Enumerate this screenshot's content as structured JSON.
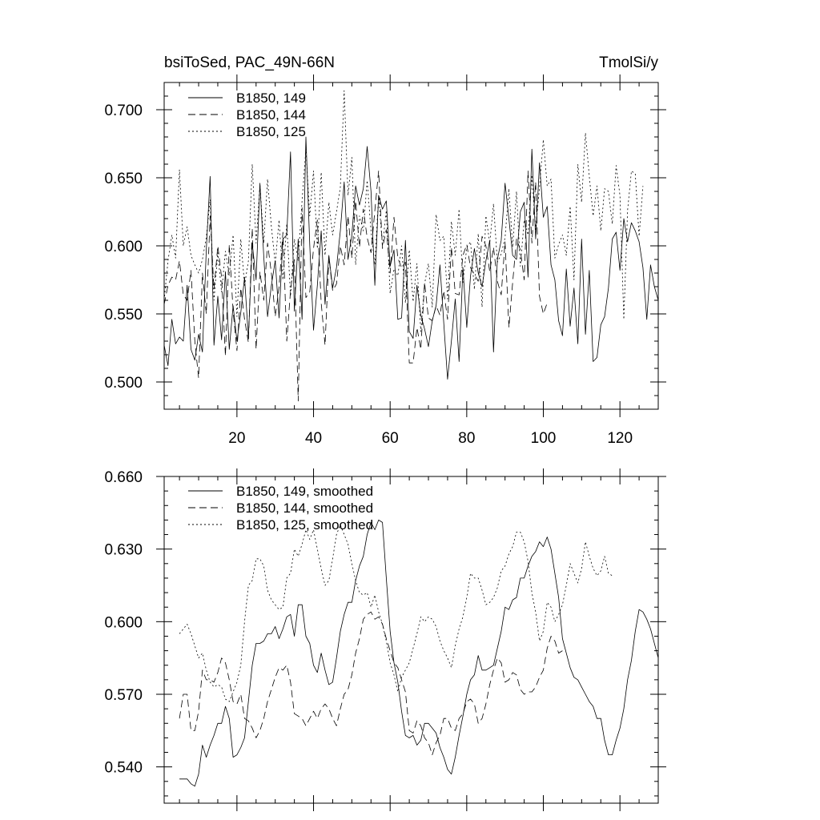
{
  "chart_data": [
    {
      "type": "line",
      "title_left": "bsiToSed, PAC_49N-66N",
      "title_right": "TmolSi/y",
      "xlim": [
        1,
        130
      ],
      "ylim": [
        0.48,
        0.72
      ],
      "x_major_ticks": [
        20,
        40,
        60,
        80,
        100,
        120
      ],
      "x_tick_labels": [
        "20",
        "40",
        "60",
        "80",
        "100",
        "120"
      ],
      "y_major_ticks": [
        0.5,
        0.55,
        0.6,
        0.65,
        0.7
      ],
      "y_tick_labels": [
        "0.500",
        "0.550",
        "0.600",
        "0.650",
        "0.700"
      ],
      "legend_position": "top-left",
      "series": [
        {
          "name": "B1850, 149",
          "style": "solid",
          "x_start": 1,
          "values": [
            0.527,
            0.512,
            0.546,
            0.528,
            0.533,
            0.53,
            0.571,
            0.524,
            0.516,
            0.535,
            0.522,
            0.597,
            0.651,
            0.527,
            0.563,
            0.531,
            0.581,
            0.524,
            0.556,
            0.53,
            0.551,
            0.577,
            0.532,
            0.602,
            0.575,
            0.646,
            0.592,
            0.548,
            0.571,
            0.589,
            0.547,
            0.605,
            0.608,
            0.669,
            0.552,
            0.605,
            0.546,
            0.68,
            0.601,
            0.538,
            0.571,
            0.611,
            0.557,
            0.593,
            0.569,
            0.584,
            0.611,
            0.647,
            0.59,
            0.608,
            0.644,
            0.63,
            0.642,
            0.673,
            0.64,
            0.571,
            0.637,
            0.627,
            0.633,
            0.585,
            0.597,
            0.546,
            0.547,
            0.604,
            0.537,
            0.532,
            0.571,
            0.549,
            0.539,
            0.526,
            0.545,
            0.556,
            0.586,
            0.543,
            0.502,
            0.53,
            0.561,
            0.515,
            0.584,
            0.54,
            0.578,
            0.598,
            0.58,
            0.57,
            0.589,
            0.604,
            0.522,
            0.59,
            0.604,
            0.646,
            0.62,
            0.593,
            0.59,
            0.625,
            0.632,
            0.577,
            0.671,
            0.605,
            0.661,
            0.621,
            0.629,
            0.586,
            0.575,
            0.545,
            0.534,
            0.583,
            0.541,
            0.569,
            0.528,
            0.605,
            0.535,
            0.582,
            0.515,
            0.518,
            0.542,
            0.548,
            0.569,
            0.605,
            0.61,
            0.582,
            0.62,
            0.603,
            0.617,
            0.611,
            0.603,
            0.584,
            0.546,
            0.586,
            0.57,
            0.56
          ]
        },
        {
          "name": "B1850, 144",
          "style": "dashed",
          "x_start": 1,
          "values": [
            0.557,
            0.571,
            0.577,
            0.575,
            0.589,
            0.564,
            0.56,
            0.582,
            0.53,
            0.503,
            0.58,
            0.55,
            0.622,
            0.568,
            0.6,
            0.577,
            0.519,
            0.601,
            0.552,
            0.523,
            0.569,
            0.546,
            0.529,
            0.613,
            0.524,
            0.581,
            0.56,
            0.602,
            0.58,
            0.548,
            0.57,
            0.61,
            0.53,
            0.567,
            0.59,
            0.486,
            0.628,
            0.562,
            0.566,
            0.598,
            0.619,
            0.558,
            0.527,
            0.592,
            0.567,
            0.572,
            0.6,
            0.586,
            0.622,
            0.591,
            0.633,
            0.599,
            0.627,
            0.606,
            0.595,
            0.626,
            0.655,
            0.598,
            0.612,
            0.58,
            0.621,
            0.591,
            0.584,
            0.588,
            0.514,
            0.514,
            0.54,
            0.524,
            0.573,
            0.547,
            0.545,
            0.556,
            0.549,
            0.567,
            0.546,
            0.599,
            0.565,
            0.564,
            0.593,
            0.601,
            0.584,
            0.579,
            0.574,
            0.607,
            0.6,
            0.581,
            0.599,
            0.574,
            0.564,
            0.603,
            0.54,
            0.573,
            0.605,
            0.597,
            0.575,
            0.655,
            0.602,
            0.647,
            0.563,
            0.55,
            0.558
          ]
        },
        {
          "name": "B1850, 125",
          "style": "dotted",
          "x_start": 1,
          "values": [
            0.56,
            0.589,
            0.608,
            0.591,
            0.656,
            0.6,
            0.614,
            0.593,
            0.586,
            0.58,
            0.59,
            0.606,
            0.634,
            0.56,
            0.595,
            0.566,
            0.596,
            0.578,
            0.608,
            0.548,
            0.605,
            0.571,
            0.589,
            0.66,
            0.602,
            0.645,
            0.602,
            0.649,
            0.614,
            0.587,
            0.619,
            0.575,
            0.616,
            0.563,
            0.605,
            0.589,
            0.633,
            0.671,
            0.622,
            0.655,
            0.598,
            0.654,
            0.593,
            0.632,
            0.608,
            0.625,
            0.643,
            0.714,
            0.637,
            0.665,
            0.586,
            0.622,
            0.611,
            0.648,
            0.611,
            0.586,
            0.637,
            0.6,
            0.626,
            0.565,
            0.583,
            0.578,
            0.6,
            0.558,
            0.597,
            0.559,
            0.587,
            0.537,
            0.572,
            0.587,
            0.555,
            0.623,
            0.604,
            0.607,
            0.561,
            0.618,
            0.593,
            0.627,
            0.573,
            0.599,
            0.603,
            0.568,
            0.609,
            0.555,
            0.622,
            0.602,
            0.631,
            0.588,
            0.594,
            0.606,
            0.642,
            0.599,
            0.64,
            0.585,
            0.619,
            0.608,
            0.652,
            0.612,
            0.643,
            0.678,
            0.644,
            0.649,
            0.591,
            0.601,
            0.608,
            0.593,
            0.629,
            0.575,
            0.66,
            0.632,
            0.683,
            0.651,
            0.622,
            0.644,
            0.611,
            0.642,
            0.64,
            0.616,
            0.659,
            0.637,
            0.546,
            0.626,
            0.655,
            0.653,
            0.607,
            0.644
          ]
        }
      ]
    },
    {
      "type": "line",
      "xlim": [
        1,
        130
      ],
      "ylim": [
        0.525,
        0.66
      ],
      "x_major_ticks": [
        20,
        40,
        60,
        80,
        100,
        120
      ],
      "y_major_ticks": [
        0.54,
        0.57,
        0.6,
        0.63,
        0.66
      ],
      "y_tick_labels": [
        "0.540",
        "0.570",
        "0.600",
        "0.630",
        "0.660"
      ],
      "legend_position": "top-left",
      "series": [
        {
          "name": "B1850, 149, smoothed",
          "style": "solid",
          "x_start": 5,
          "values": [
            0.535,
            0.535,
            0.535,
            0.533,
            0.532,
            0.537,
            0.549,
            0.544,
            0.549,
            0.553,
            0.558,
            0.558,
            0.565,
            0.56,
            0.544,
            0.545,
            0.548,
            0.552,
            0.567,
            0.582,
            0.591,
            0.591,
            0.592,
            0.595,
            0.595,
            0.598,
            0.593,
            0.597,
            0.602,
            0.603,
            0.594,
            0.607,
            0.607,
            0.594,
            0.591,
            0.582,
            0.579,
            0.587,
            0.58,
            0.574,
            0.575,
            0.585,
            0.596,
            0.603,
            0.608,
            0.608,
            0.617,
            0.623,
            0.627,
            0.636,
            0.641,
            0.638,
            0.642,
            0.641,
            0.618,
            0.596,
            0.583,
            0.575,
            0.563,
            0.553,
            0.552,
            0.553,
            0.549,
            0.551,
            0.558,
            0.558,
            0.556,
            0.554,
            0.548,
            0.544,
            0.539,
            0.537,
            0.544,
            0.553,
            0.561,
            0.57,
            0.576,
            0.578,
            0.586,
            0.58,
            0.58,
            0.581,
            0.582,
            0.589,
            0.596,
            0.606,
            0.605,
            0.609,
            0.61,
            0.618,
            0.618,
            0.623,
            0.627,
            0.629,
            0.633,
            0.631,
            0.635,
            0.63,
            0.62,
            0.61,
            0.593,
            0.587,
            0.581,
            0.577,
            0.576,
            0.573,
            0.57,
            0.567,
            0.565,
            0.56,
            0.56,
            0.551,
            0.545,
            0.545,
            0.551,
            0.556,
            0.564,
            0.576,
            0.584,
            0.596,
            0.605,
            0.604,
            0.601,
            0.597,
            0.591,
            0.585,
            0.579
          ]
        },
        {
          "name": "B1850, 144, smoothed",
          "style": "dashed",
          "x_start": 5,
          "values": [
            0.56,
            0.57,
            0.57,
            0.555,
            0.555,
            0.563,
            0.58,
            0.576,
            0.576,
            0.575,
            0.579,
            0.585,
            0.583,
            0.576,
            0.567,
            0.566,
            0.57,
            0.56,
            0.559,
            0.556,
            0.552,
            0.555,
            0.56,
            0.567,
            0.572,
            0.577,
            0.581,
            0.58,
            0.582,
            0.575,
            0.562,
            0.561,
            0.56,
            0.557,
            0.56,
            0.563,
            0.56,
            0.564,
            0.566,
            0.564,
            0.56,
            0.557,
            0.564,
            0.57,
            0.572,
            0.578,
            0.587,
            0.593,
            0.601,
            0.603,
            0.604,
            0.601,
            0.602,
            0.599,
            0.593,
            0.588,
            0.583,
            0.581,
            0.576,
            0.571,
            0.555,
            0.554,
            0.559,
            0.557,
            0.552,
            0.55,
            0.545,
            0.55,
            0.553,
            0.56,
            0.56,
            0.556,
            0.555,
            0.56,
            0.562,
            0.567,
            0.568,
            0.566,
            0.558,
            0.56,
            0.566,
            0.574,
            0.58,
            0.585,
            0.583,
            0.575,
            0.576,
            0.579,
            0.578,
            0.572,
            0.57,
            0.571,
            0.571,
            0.573,
            0.577,
            0.58,
            0.589,
            0.594,
            0.592,
            0.587,
            0.588
          ]
        },
        {
          "name": "B1850, 125, smoothed",
          "style": "dotted",
          "x_start": 5,
          "values": [
            0.595,
            0.597,
            0.599,
            0.595,
            0.59,
            0.585,
            0.587,
            0.58,
            0.575,
            0.573,
            0.574,
            0.573,
            0.568,
            0.567,
            0.571,
            0.575,
            0.582,
            0.6,
            0.615,
            0.617,
            0.626,
            0.626,
            0.623,
            0.613,
            0.609,
            0.607,
            0.605,
            0.606,
            0.618,
            0.62,
            0.63,
            0.627,
            0.632,
            0.638,
            0.634,
            0.638,
            0.63,
            0.622,
            0.615,
            0.617,
            0.626,
            0.636,
            0.64,
            0.636,
            0.632,
            0.624,
            0.617,
            0.612,
            0.611,
            0.612,
            0.606,
            0.611,
            0.604,
            0.599,
            0.592,
            0.583,
            0.578,
            0.571,
            0.577,
            0.58,
            0.583,
            0.589,
            0.595,
            0.602,
            0.6,
            0.602,
            0.601,
            0.598,
            0.592,
            0.588,
            0.585,
            0.581,
            0.59,
            0.597,
            0.602,
            0.61,
            0.62,
            0.618,
            0.618,
            0.613,
            0.607,
            0.608,
            0.61,
            0.614,
            0.621,
            0.623,
            0.628,
            0.631,
            0.637,
            0.637,
            0.633,
            0.625,
            0.612,
            0.604,
            0.592,
            0.596,
            0.608,
            0.606,
            0.6,
            0.603,
            0.607,
            0.615,
            0.624,
            0.62,
            0.616,
            0.622,
            0.633,
            0.627,
            0.622,
            0.619,
            0.621,
            0.627,
            0.62,
            0.619
          ]
        }
      ]
    }
  ]
}
